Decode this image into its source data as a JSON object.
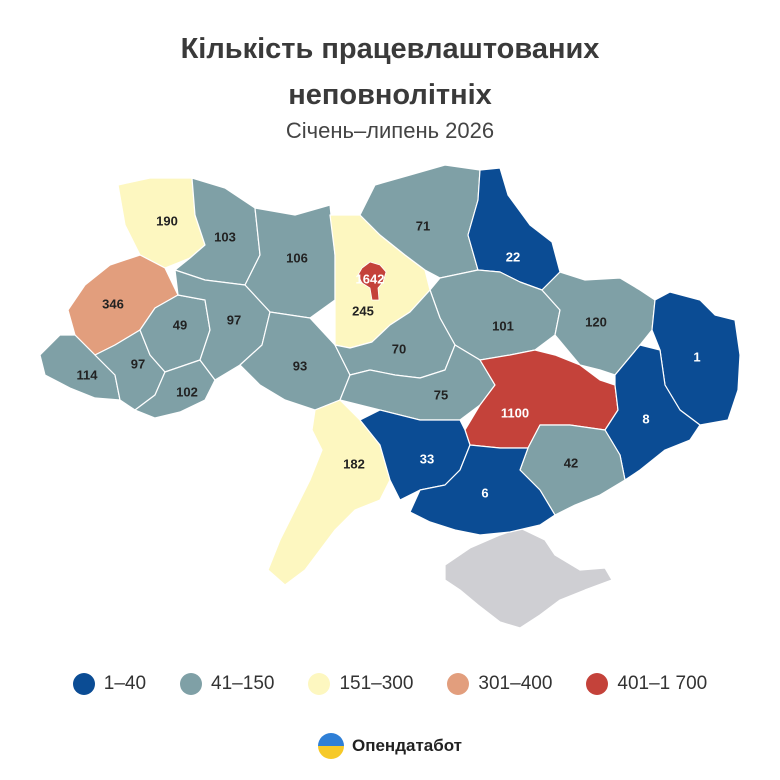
{
  "header": {
    "title_line1": "Кількість працевлаштованих",
    "title_line2": "неповнолітніх",
    "subtitle": "Січень–липень 2026"
  },
  "colors": {
    "c1": "#0b4c94",
    "c2": "#7fa0a6",
    "c3": "#fdf7c0",
    "c4": "#e29e7d",
    "c5": "#c4423a",
    "crimea": "#cfcfd3"
  },
  "legend": [
    {
      "label": "1–40",
      "color": "#0b4c94"
    },
    {
      "label": "41–150",
      "color": "#7fa0a6"
    },
    {
      "label": "151–300",
      "color": "#fdf7c0"
    },
    {
      "label": "301–400",
      "color": "#e29e7d"
    },
    {
      "label": "401–1 700",
      "color": "#c4423a"
    }
  ],
  "regions": [
    {
      "id": "volyn",
      "value": "190"
    },
    {
      "id": "rivne",
      "value": "103"
    },
    {
      "id": "zhytomyr",
      "value": "106"
    },
    {
      "id": "kyiv-city",
      "value": "1642"
    },
    {
      "id": "kyiv-oblast",
      "value": "245"
    },
    {
      "id": "chernihiv",
      "value": "71"
    },
    {
      "id": "sumy",
      "value": "22"
    },
    {
      "id": "lviv",
      "value": "346"
    },
    {
      "id": "ternopil",
      "value": "49"
    },
    {
      "id": "khmelnytskyi",
      "value": "97"
    },
    {
      "id": "zakarpattia",
      "value": "114"
    },
    {
      "id": "ivano-frankivsk",
      "value": "97"
    },
    {
      "id": "chernivtsi",
      "value": "102"
    },
    {
      "id": "vinnytsia",
      "value": "93"
    },
    {
      "id": "cherkasy",
      "value": "70"
    },
    {
      "id": "poltava",
      "value": "101"
    },
    {
      "id": "kharkiv",
      "value": "120"
    },
    {
      "id": "luhansk",
      "value": "1"
    },
    {
      "id": "kirovohrad",
      "value": "75"
    },
    {
      "id": "dnipropetrovsk",
      "value": "1100"
    },
    {
      "id": "donetsk",
      "value": "8"
    },
    {
      "id": "odesa",
      "value": "182"
    },
    {
      "id": "mykolaiv",
      "value": "33"
    },
    {
      "id": "zaporizhzhia",
      "value": "42"
    },
    {
      "id": "kherson",
      "value": "6"
    }
  ],
  "brand": {
    "name": "Опендатабот"
  }
}
